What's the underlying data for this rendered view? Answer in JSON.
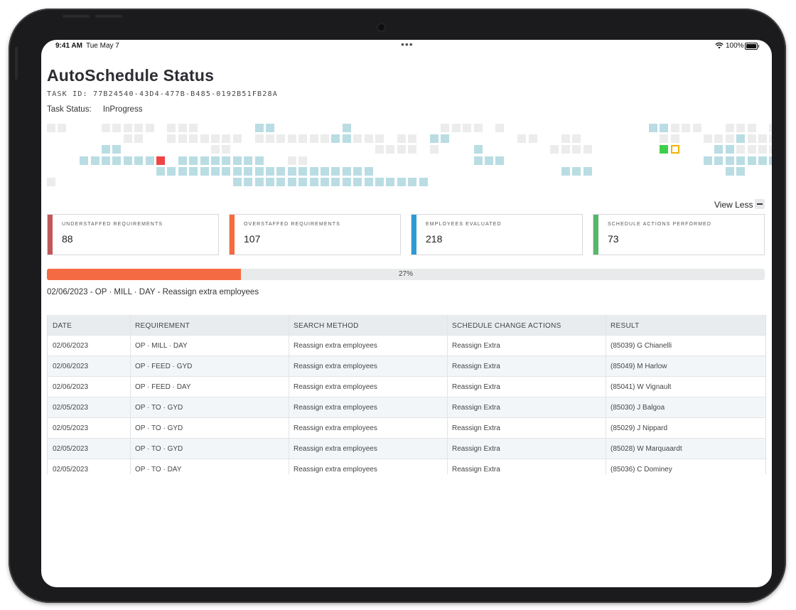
{
  "statusbar": {
    "time": "9:41 AM",
    "date": "Tue May 7",
    "dots": "•••",
    "battery": "100%"
  },
  "header": {
    "title": "AutoSchedule Status",
    "task_id": "TASK ID: 77B24540-43D4-477B-B485-0192B51FB28A",
    "task_status_label": "Task Status:",
    "task_status_value": "InProgress"
  },
  "colors": {
    "teal": "#b9dde3",
    "grey": "#ececec",
    "red": "#ef4444",
    "green": "#3ecf4a",
    "yellow_outline": "#f0b400",
    "understaffed": "#c0585a",
    "overstaffed": "#f46b43",
    "evaluated": "#2f9ad2",
    "actions": "#55b868",
    "progress": "#f46b43"
  },
  "view_toggle": {
    "label": "View Less",
    "icon": "minus-icon"
  },
  "stats": [
    {
      "label": "UNDERSTAFFED REQUIREMENTS",
      "value": "88"
    },
    {
      "label": "OVERSTAFFED REQUIREMENTS",
      "value": "107"
    },
    {
      "label": "EMPLOYEES EVALUATED",
      "value": "218"
    },
    {
      "label": "SCHEDULE ACTIONS PERFORMED",
      "value": "73"
    }
  ],
  "progress": {
    "percent": 27,
    "label": "27%"
  },
  "current_step": "02/06/2023 - OP · MILL · DAY - Reassign extra employees",
  "table": {
    "headers": [
      "DATE",
      "REQUIREMENT",
      "SEARCH METHOD",
      "SCHEDULE CHANGE ACTIONS",
      "RESULT"
    ],
    "rows": [
      [
        "02/06/2023",
        "OP · MILL · DAY",
        "Reassign extra employees",
        "Reassign Extra",
        "(85039) G Chianelli"
      ],
      [
        "02/06/2023",
        "OP · FEED · GYD",
        "Reassign extra employees",
        "Reassign Extra",
        "(85049) M Harlow"
      ],
      [
        "02/06/2023",
        "OP · FEED · DAY",
        "Reassign extra employees",
        "Reassign Extra",
        "(85041) W Vignault"
      ],
      [
        "02/05/2023",
        "OP · TO · GYD",
        "Reassign extra employees",
        "Reassign Extra",
        "(85030) J Balgoa"
      ],
      [
        "02/05/2023",
        "OP · TO · GYD",
        "Reassign extra employees",
        "Reassign Extra",
        "(85029) J Nippard"
      ],
      [
        "02/05/2023",
        "OP · TO · GYD",
        "Reassign extra employees",
        "Reassign Extra",
        "(85028) W Marquaardt"
      ],
      [
        "02/05/2023",
        "OP · TO · DAY",
        "Reassign extra employees",
        "Reassign Extra",
        "(85036) C Dominey"
      ]
    ]
  }
}
